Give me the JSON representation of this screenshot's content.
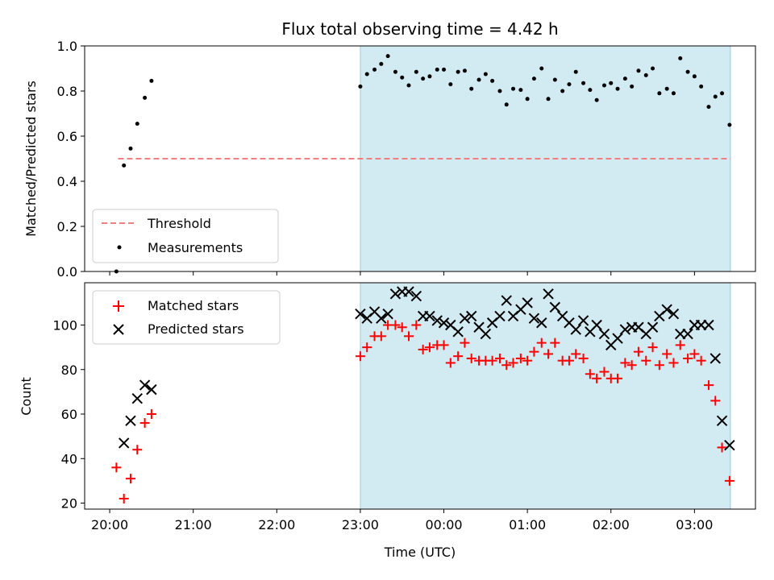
{
  "chart_data": [
    {
      "type": "scatter",
      "title": "Flux total observing time = 4.42 h",
      "xlabel": "",
      "ylabel": "Matched/Predicted stars",
      "ylim": [
        0,
        1.0
      ],
      "xlim_hours": [
        19.7,
        27.73
      ],
      "yticks": [
        0.0,
        0.2,
        0.4,
        0.6,
        0.8,
        1.0
      ],
      "ytick_labels": [
        "0.0",
        "0.2",
        "0.4",
        "0.6",
        "0.8",
        "1.0"
      ],
      "shaded_region_hours": [
        23.0,
        27.43
      ],
      "shaded_color": "#add8e6",
      "threshold": {
        "name": "Threshold",
        "value": 0.5,
        "x_range_hours": [
          20.1,
          27.43
        ],
        "color": "#f08080"
      },
      "legend_position": "lower-left",
      "series": [
        {
          "name": "Measurements",
          "color": "#000000",
          "marker": "dot",
          "x_hours": [
            20.08,
            20.17,
            20.25,
            20.33,
            20.42,
            20.5,
            23.0,
            23.08,
            23.17,
            23.25,
            23.33,
            23.42,
            23.5,
            23.58,
            23.67,
            23.75,
            23.83,
            23.92,
            24.0,
            24.08,
            24.17,
            24.25,
            24.33,
            24.42,
            24.5,
            24.58,
            24.67,
            24.75,
            24.83,
            24.92,
            25.0,
            25.08,
            25.17,
            25.25,
            25.33,
            25.42,
            25.5,
            25.58,
            25.67,
            25.75,
            25.83,
            25.92,
            26.0,
            26.08,
            26.17,
            26.25,
            26.33,
            26.42,
            26.5,
            26.58,
            26.67,
            26.75,
            26.83,
            26.92,
            27.0,
            27.08,
            27.17,
            27.25,
            27.33,
            27.42
          ],
          "y": [
            0.0,
            0.47,
            0.545,
            0.655,
            0.77,
            0.845,
            0.82,
            0.875,
            0.895,
            0.92,
            0.955,
            0.885,
            0.86,
            0.825,
            0.885,
            0.855,
            0.865,
            0.895,
            0.895,
            0.83,
            0.885,
            0.89,
            0.81,
            0.85,
            0.875,
            0.845,
            0.8,
            0.74,
            0.81,
            0.805,
            0.765,
            0.855,
            0.9,
            0.765,
            0.85,
            0.8,
            0.83,
            0.885,
            0.835,
            0.805,
            0.76,
            0.825,
            0.835,
            0.81,
            0.855,
            0.82,
            0.89,
            0.87,
            0.9,
            0.79,
            0.81,
            0.79,
            0.945,
            0.885,
            0.865,
            0.82,
            0.73,
            0.775,
            0.79,
            0.65
          ]
        }
      ]
    },
    {
      "type": "scatter",
      "title": "",
      "xlabel": "Time (UTC)",
      "ylabel": "Count",
      "ylim": [
        17.3,
        119
      ],
      "xlim_hours": [
        19.7,
        27.73
      ],
      "yticks": [
        20,
        40,
        60,
        80,
        100
      ],
      "ytick_labels": [
        "20",
        "40",
        "60",
        "80",
        "100"
      ],
      "xticks_hours": [
        20,
        21,
        22,
        23,
        24,
        25,
        26,
        27
      ],
      "xtick_labels": [
        "20:00",
        "21:00",
        "22:00",
        "23:00",
        "00:00",
        "01:00",
        "02:00",
        "03:00"
      ],
      "shaded_region_hours": [
        23.0,
        27.43
      ],
      "shaded_color": "#add8e6",
      "legend_position": "upper-left",
      "series": [
        {
          "name": "Matched stars",
          "color": "#ff0000",
          "marker": "plus",
          "x_hours": [
            20.08,
            20.17,
            20.25,
            20.33,
            20.42,
            20.5,
            23.0,
            23.08,
            23.17,
            23.25,
            23.33,
            23.42,
            23.5,
            23.58,
            23.67,
            23.75,
            23.83,
            23.92,
            24.0,
            24.08,
            24.17,
            24.25,
            24.33,
            24.42,
            24.5,
            24.58,
            24.67,
            24.75,
            24.83,
            24.92,
            25.0,
            25.08,
            25.17,
            25.25,
            25.33,
            25.42,
            25.5,
            25.58,
            25.67,
            25.75,
            25.83,
            25.92,
            26.0,
            26.08,
            26.17,
            26.25,
            26.33,
            26.42,
            26.5,
            26.58,
            26.67,
            26.75,
            26.83,
            26.92,
            27.0,
            27.08,
            27.17,
            27.25,
            27.33,
            27.42
          ],
          "y": [
            36,
            22,
            31,
            44,
            56,
            60,
            86,
            90,
            95,
            95,
            100,
            100,
            99,
            95,
            100,
            89,
            90,
            91,
            91,
            83,
            86,
            92,
            85,
            84,
            84,
            84,
            85,
            82,
            83,
            85,
            84,
            88,
            92,
            87,
            92,
            84,
            84,
            87,
            85,
            78,
            76,
            79,
            76,
            76,
            83,
            82,
            88,
            84,
            90,
            82,
            87,
            83,
            91,
            85,
            87,
            84,
            73,
            66,
            45,
            30
          ]
        },
        {
          "name": "Predicted stars",
          "color": "#000000",
          "marker": "x",
          "x_hours": [
            20.17,
            20.25,
            20.33,
            20.42,
            20.5,
            23.0,
            23.08,
            23.17,
            23.25,
            23.33,
            23.42,
            23.5,
            23.58,
            23.67,
            23.75,
            23.83,
            23.92,
            24.0,
            24.08,
            24.17,
            24.25,
            24.33,
            24.42,
            24.5,
            24.58,
            24.67,
            24.75,
            24.83,
            24.92,
            25.0,
            25.08,
            25.17,
            25.25,
            25.33,
            25.42,
            25.5,
            25.58,
            25.67,
            25.75,
            25.83,
            25.92,
            26.0,
            26.08,
            26.17,
            26.25,
            26.33,
            26.42,
            26.5,
            26.58,
            26.67,
            26.75,
            26.83,
            26.92,
            27.0,
            27.08,
            27.17,
            27.25,
            27.33,
            27.42
          ],
          "y": [
            47,
            57,
            67,
            73,
            71,
            105,
            103,
            106,
            103,
            105,
            114,
            115,
            115,
            113,
            104,
            104,
            102,
            101,
            100,
            97,
            103,
            104,
            99,
            96,
            101,
            104,
            111,
            104,
            107,
            110,
            103,
            101,
            114,
            108,
            104,
            101,
            98,
            102,
            97,
            100,
            96,
            91,
            94,
            98,
            99,
            99,
            96,
            99,
            104,
            107,
            105,
            96,
            96,
            100,
            100,
            100,
            85,
            57,
            46
          ]
        }
      ]
    }
  ]
}
